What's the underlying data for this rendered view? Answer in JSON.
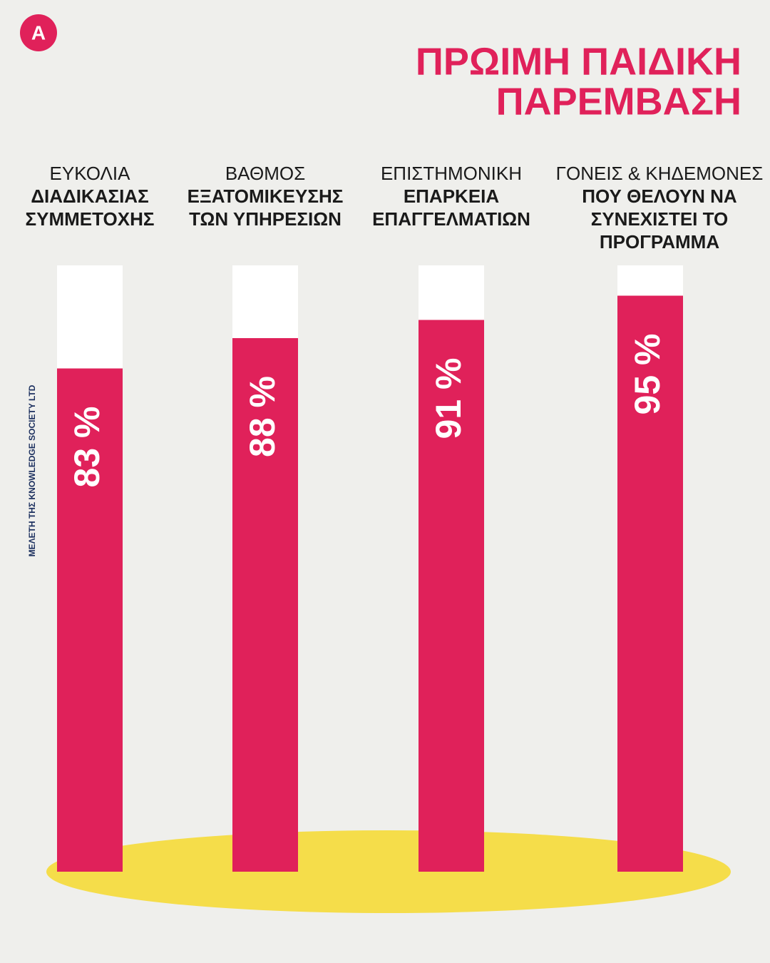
{
  "logo": "A",
  "chart_data": {
    "type": "bar",
    "title": [
      "ΠΡΩΙΜΗ ΠΑΙΔΙΚΗ",
      "ΠΑΡΕΜΒΑΣΗ"
    ],
    "source": "ΜΕΛΕΤΗ ΤΗΣ KNOWLEDGE SOCIETY LTD",
    "categories": [
      [
        "ΕΥΚΟΛΙΑ",
        "ΔΙΑΔΙΚΑΣΙΑΣ",
        "ΣΥΜΜΕΤΟΧΗΣ"
      ],
      [
        "ΒΑΘΜΟΣ",
        "ΕΞΑΤΟΜΙΚΕΥΣΗΣ",
        "ΤΩΝ ΥΠΗΡΕΣΙΩΝ"
      ],
      [
        "ΕΠΙΣΤΗΜΟΝΙΚΗ",
        "ΕΠΑΡΚΕΙΑ",
        "ΕΠΑΓΓΕΛΜΑΤΙΩΝ"
      ],
      [
        "ΓΟΝΕΙΣ & ΚΗΔΕΜΟΝΕΣ",
        "ΠΟΥ ΘΕΛΟΥΝ ΝΑ",
        "ΣΥΝΕΧΙΣΤΕΙ ΤΟ",
        "ΠΡΟΓΡΑΜΜΑ"
      ]
    ],
    "values": [
      83,
      88,
      91,
      95
    ],
    "value_labels": [
      "83 %",
      "88 %",
      "91 %",
      "95 %"
    ],
    "color": "#e0215a",
    "ylim": [
      0,
      100
    ]
  }
}
